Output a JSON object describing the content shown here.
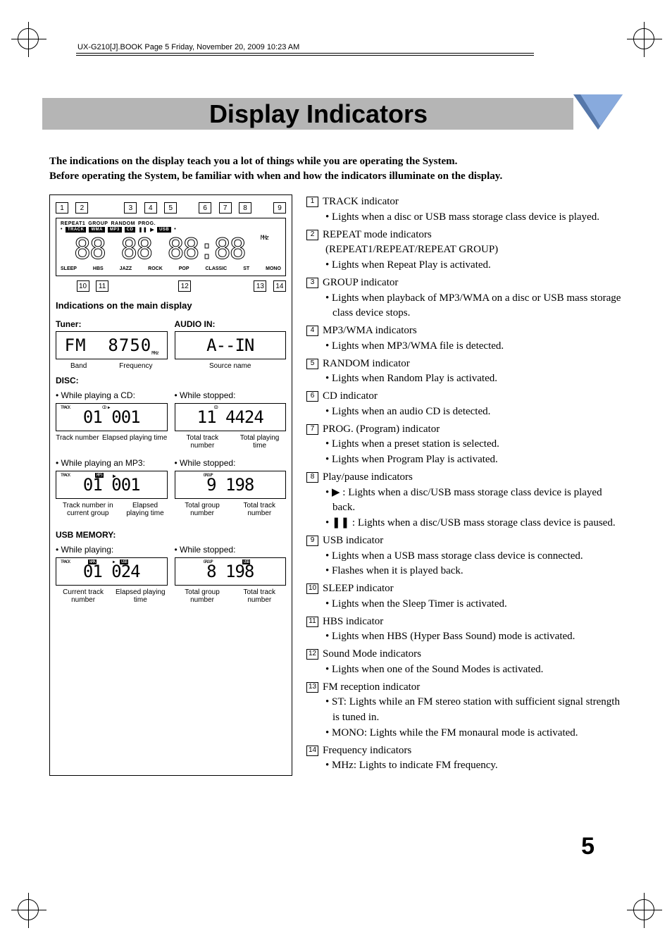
{
  "header_line": "UX-G210[J].BOOK  Page 5  Friday, November 20, 2009  10:23 AM",
  "title": "Display Indicators",
  "intro_line1": "The indications on the display teach you a lot of things while you are operating the System.",
  "intro_line2": "Before operating the System, be familiar with when and how the indicators illuminate on the display.",
  "callout_top": [
    "1",
    "2",
    "3",
    "4",
    "5",
    "6",
    "7",
    "8",
    "9"
  ],
  "callout_bottom": [
    "10",
    "11",
    "12",
    "13",
    "14"
  ],
  "lcd_top_indicators": [
    "REPEAT1",
    "GROUP",
    "RANDOM",
    "PROG."
  ],
  "lcd_top_boxes": [
    "TRACK",
    "WMA",
    "MP3",
    "CD",
    "▶",
    "USB"
  ],
  "lcd_segments": "88:88 88:88",
  "lcd_mhz": "MHz",
  "lcd_bot_indicators": [
    "SLEEP",
    "HBS",
    "JAZZ",
    "ROCK",
    "POP",
    "CLASSIC",
    "ST",
    "MONO"
  ],
  "indications_head": "Indications on the main display",
  "tuner": {
    "head": "Tuner:",
    "display": "FM    8750",
    "unit": "MHz",
    "label1": "Band",
    "label2": "Frequency"
  },
  "audioin": {
    "head": "AUDIO IN:",
    "display": "A--IN",
    "label": "Source name"
  },
  "disc": {
    "head": "DISC:",
    "play_cd": "• While playing a CD:",
    "stopped": "• While stopped:",
    "cd_disp": "01    001",
    "cd_stop_disp": "11  4424",
    "cd_l1": "Track number",
    "cd_l2": "Elapsed playing time",
    "cd_s1": "Total track number",
    "cd_s2": "Total playing time",
    "play_mp3": "• While playing an MP3:",
    "mp3_disp": "01    001",
    "mp3_stop_disp": "9     198",
    "mp3_l1": "Track number in current group",
    "mp3_l2": "Elapsed playing time",
    "mp3_s1": "Total group number",
    "mp3_s2": "Total track number"
  },
  "usb": {
    "head": "USB MEMORY:",
    "playing": "• While playing:",
    "stopped": "• While stopped:",
    "play_disp": "01    024",
    "stop_disp": "8     198",
    "l1": "Current track number",
    "l2": "Elapsed playing time",
    "s1": "Total group number",
    "s2": "Total track number"
  },
  "definitions": [
    {
      "n": "1",
      "title": "TRACK indicator",
      "subs": [
        "Lights when a disc or USB mass storage class device is played."
      ]
    },
    {
      "n": "2",
      "title": "REPEAT mode indicators",
      "paren": "(REPEAT1/REPEAT/REPEAT GROUP)",
      "subs": [
        "Lights when Repeat Play is activated."
      ]
    },
    {
      "n": "3",
      "title": "GROUP indicator",
      "subs": [
        "Lights when playback of MP3/WMA on a disc or USB mass storage class device stops."
      ]
    },
    {
      "n": "4",
      "title": "MP3/WMA indicators",
      "subs": [
        "Lights when MP3/WMA file is detected."
      ]
    },
    {
      "n": "5",
      "title": "RANDOM indicator",
      "subs": [
        "Lights when Random Play is activated."
      ]
    },
    {
      "n": "6",
      "title": "CD indicator",
      "subs": [
        "Lights when an audio CD is detected."
      ]
    },
    {
      "n": "7",
      "title": "PROG. (Program) indicator",
      "subs": [
        "Lights when a preset station is selected.",
        "Lights when Program Play is activated."
      ]
    },
    {
      "n": "8",
      "title": "Play/pause indicators",
      "subs": [
        "▶ : Lights when a disc/USB mass storage class device is played back.",
        "❚❚ : Lights when a disc/USB mass storage class device is paused."
      ]
    },
    {
      "n": "9",
      "title": "USB indicator",
      "subs": [
        "Lights when a USB mass storage class device is connected.",
        "Flashes when it is played back."
      ]
    },
    {
      "n": "10",
      "title": "SLEEP indicator",
      "subs": [
        "Lights when the Sleep Timer is activated."
      ]
    },
    {
      "n": "11",
      "title": "HBS indicator",
      "subs": [
        "Lights when HBS (Hyper Bass Sound) mode is activated."
      ]
    },
    {
      "n": "12",
      "title": "Sound Mode indicators",
      "subs": [
        "Lights when one of the Sound Modes is activated."
      ]
    },
    {
      "n": "13",
      "title": "FM reception indicator",
      "subs": [
        "ST: Lights while an FM stereo station with sufficient signal strength is tuned in.",
        "MONO: Lights while the FM monaural mode is activated."
      ]
    },
    {
      "n": "14",
      "title": "Frequency indicators",
      "subs": [
        "MHz: Lights to indicate FM frequency."
      ]
    }
  ],
  "page_number": "5"
}
